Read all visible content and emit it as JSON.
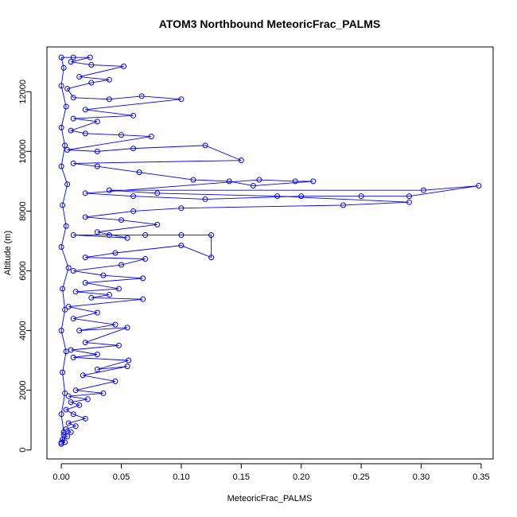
{
  "chart_data": {
    "type": "scatter",
    "title": "ATOM3 Northbound MeteoricFrac_PALMS",
    "xlabel": "MeteoricFrac_PALMS",
    "ylabel": "Altitude (m)",
    "xlim": [
      -0.012,
      0.36
    ],
    "ylim": [
      -300,
      13500
    ],
    "x_ticks": [
      0.0,
      0.05,
      0.1,
      0.15,
      0.2,
      0.25,
      0.3,
      0.35
    ],
    "x_tick_labels": [
      "0.00",
      "0.05",
      "0.10",
      "0.15",
      "0.20",
      "0.25",
      "0.30",
      "0.35"
    ],
    "y_ticks": [
      0,
      2000,
      4000,
      6000,
      8000,
      10000,
      12000
    ],
    "y_tick_labels": [
      "0",
      "2000",
      "4000",
      "6000",
      "8000",
      "10000",
      "12000"
    ],
    "series_color": "#0000ff",
    "marker": "open-circle",
    "connected": true,
    "grid": false,
    "legend": "none",
    "series": [
      {
        "points": [
          [
            0.0,
            200
          ],
          [
            0.003,
            260
          ],
          [
            0.001,
            350
          ],
          [
            0.005,
            450
          ],
          [
            0.002,
            520
          ],
          [
            0.008,
            600
          ],
          [
            0.004,
            700
          ],
          [
            0.012,
            800
          ],
          [
            0.006,
            900
          ],
          [
            0.02,
            1050
          ],
          [
            0.01,
            1200
          ],
          [
            0.004,
            1350
          ],
          [
            0.015,
            1500
          ],
          [
            0.008,
            1600
          ],
          [
            0.022,
            1700
          ],
          [
            0.006,
            1800
          ],
          [
            0.035,
            1900
          ],
          [
            0.012,
            2000
          ],
          [
            0.045,
            2300
          ],
          [
            0.018,
            2500
          ],
          [
            0.055,
            2800
          ],
          [
            0.03,
            2700
          ],
          [
            0.056,
            3000
          ],
          [
            0.01,
            3100
          ],
          [
            0.03,
            3200
          ],
          [
            0.008,
            3350
          ],
          [
            0.048,
            3500
          ],
          [
            0.02,
            3600
          ],
          [
            0.055,
            4100
          ],
          [
            0.015,
            4000
          ],
          [
            0.045,
            4200
          ],
          [
            0.01,
            4400
          ],
          [
            0.03,
            4600
          ],
          [
            0.006,
            4800
          ],
          [
            0.068,
            5050
          ],
          [
            0.025,
            5100
          ],
          [
            0.04,
            5200
          ],
          [
            0.012,
            5300
          ],
          [
            0.048,
            5400
          ],
          [
            0.02,
            5600
          ],
          [
            0.068,
            5750
          ],
          [
            0.035,
            5850
          ],
          [
            0.01,
            6000
          ],
          [
            0.05,
            6200
          ],
          [
            0.07,
            6400
          ],
          [
            0.02,
            6450
          ],
          [
            0.045,
            6600
          ],
          [
            0.1,
            6850
          ],
          [
            0.125,
            6450
          ],
          [
            0.125,
            7200
          ],
          [
            0.1,
            7200
          ],
          [
            0.07,
            7200
          ],
          [
            0.04,
            7200
          ],
          [
            0.01,
            7200
          ],
          [
            0.055,
            7100
          ],
          [
            0.03,
            7300
          ],
          [
            0.08,
            7550
          ],
          [
            0.05,
            7700
          ],
          [
            0.02,
            7800
          ],
          [
            0.06,
            8000
          ],
          [
            0.1,
            8100
          ],
          [
            0.235,
            8200
          ],
          [
            0.29,
            8300
          ],
          [
            0.18,
            8500
          ],
          [
            0.08,
            8600
          ],
          [
            0.04,
            8700
          ],
          [
            0.302,
            8700
          ],
          [
            0.348,
            8850
          ],
          [
            0.29,
            8500
          ],
          [
            0.25,
            8500
          ],
          [
            0.2,
            8500
          ],
          [
            0.12,
            8400
          ],
          [
            0.06,
            8500
          ],
          [
            0.02,
            8600
          ],
          [
            0.165,
            9050
          ],
          [
            0.195,
            9000
          ],
          [
            0.21,
            9000
          ],
          [
            0.16,
            8850
          ],
          [
            0.14,
            9000
          ],
          [
            0.11,
            9050
          ],
          [
            0.065,
            9300
          ],
          [
            0.03,
            9500
          ],
          [
            0.01,
            9600
          ],
          [
            0.15,
            9700
          ],
          [
            0.12,
            10200
          ],
          [
            0.06,
            10100
          ],
          [
            0.03,
            10000
          ],
          [
            0.005,
            10050
          ],
          [
            0.075,
            10500
          ],
          [
            0.05,
            10550
          ],
          [
            0.02,
            10600
          ],
          [
            0.008,
            10700
          ],
          [
            0.03,
            11000
          ],
          [
            0.01,
            11100
          ],
          [
            0.06,
            11200
          ],
          [
            0.02,
            11400
          ],
          [
            0.1,
            11750
          ],
          [
            0.067,
            11850
          ],
          [
            0.04,
            11750
          ],
          [
            0.01,
            11800
          ],
          [
            0.005,
            12100
          ],
          [
            0.025,
            12300
          ],
          [
            0.04,
            12400
          ],
          [
            0.015,
            12500
          ],
          [
            0.052,
            12850
          ],
          [
            0.025,
            12900
          ],
          [
            0.008,
            13000
          ],
          [
            0.024,
            13150
          ],
          [
            0.01,
            13150
          ],
          [
            0.0,
            13150
          ],
          [
            0.002,
            12800
          ],
          [
            0.0,
            12200
          ],
          [
            0.004,
            11500
          ],
          [
            0.0,
            10800
          ],
          [
            0.003,
            10200
          ],
          [
            0.0,
            9500
          ],
          [
            0.005,
            8900
          ],
          [
            0.001,
            8200
          ],
          [
            0.004,
            7500
          ],
          [
            0.0,
            6800
          ],
          [
            0.006,
            6100
          ],
          [
            0.001,
            5400
          ],
          [
            0.003,
            4700
          ],
          [
            0.0,
            4000
          ],
          [
            0.004,
            3300
          ],
          [
            0.001,
            2600
          ],
          [
            0.003,
            1900
          ],
          [
            0.0,
            1200
          ],
          [
            0.002,
            600
          ],
          [
            0.0,
            250
          ]
        ]
      }
    ]
  }
}
